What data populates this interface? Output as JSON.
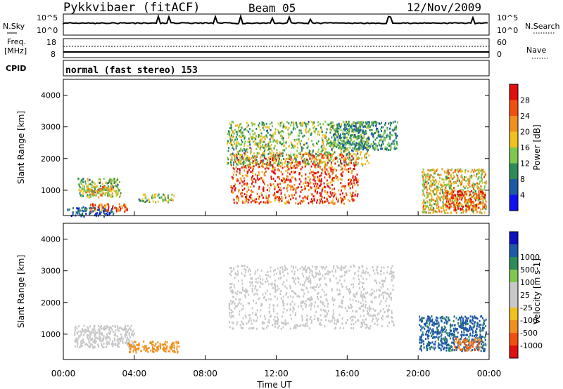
{
  "header": {
    "title": "Pykkvibaer (fitACF)",
    "beam": "Beam 05",
    "date": "12/Nov/2009"
  },
  "strip": {
    "nsky_label": "N.Sky",
    "nsearch_label": "N.Search",
    "freq_label_top": "Freq.",
    "freq_label_unit": "[MHz]",
    "nave_label": "Nave",
    "cpid_label": "CPID",
    "cpid_value": "normal (fast stereo) 153",
    "noise_ticks_left": [
      "10^5",
      "10^0"
    ],
    "noise_ticks_right": [
      "10^5",
      "10^0"
    ],
    "freq_ticks": [
      "18",
      "8"
    ],
    "nave_ticks": [
      "60",
      "0"
    ]
  },
  "colors": {
    "power": [
      "#1010f0",
      "#1e5aa8",
      "#2e8b57",
      "#7ec850",
      "#f0c020",
      "#f09020",
      "#f05010",
      "#e01010"
    ],
    "velocity": [
      "#e01010",
      "#f05010",
      "#f09020",
      "#f0c020",
      "#c8c8c8",
      "#c8c8c8",
      "#7ec850",
      "#2e8b57",
      "#1e5aa8",
      "#1010c0"
    ]
  },
  "chart_data": [
    {
      "type": "heatmap",
      "name": "power",
      "ylabel": "Slant Range [km]",
      "yticks": [
        "1000",
        "2000",
        "3000",
        "4000"
      ],
      "ylim": [
        200,
        4500
      ],
      "xlim": [
        0,
        24
      ],
      "colorbar_label": "Power [dB]",
      "colorbar_ticks": [
        "4",
        "8",
        "12",
        "16",
        "20",
        "24",
        "28"
      ],
      "colorbar_range": [
        0,
        32
      ],
      "regions": [
        {
          "t0": 0.2,
          "t1": 2.8,
          "r0": 200,
          "r1": 500,
          "value": 6
        },
        {
          "t0": 1.5,
          "t1": 3.6,
          "r0": 350,
          "r1": 600,
          "value": 26
        },
        {
          "t0": 0.8,
          "t1": 3.2,
          "r0": 800,
          "r1": 1400,
          "value": 14
        },
        {
          "t0": 1.2,
          "t1": 2.8,
          "r0": 850,
          "r1": 1150,
          "value": 20
        },
        {
          "t0": 4.2,
          "t1": 6.2,
          "r0": 650,
          "r1": 900,
          "value": 14
        },
        {
          "t0": 9.4,
          "t1": 16.6,
          "r0": 600,
          "r1": 2200,
          "value": 27
        },
        {
          "t0": 9.2,
          "t1": 17.2,
          "r0": 1800,
          "r1": 3200,
          "value": 14
        },
        {
          "t0": 15.0,
          "t1": 18.8,
          "r0": 2300,
          "r1": 3200,
          "value": 10
        },
        {
          "t0": 20.2,
          "t1": 23.8,
          "r0": 300,
          "r1": 1700,
          "value": 18
        },
        {
          "t0": 21.5,
          "t1": 23.8,
          "r0": 400,
          "r1": 1000,
          "value": 26
        }
      ]
    },
    {
      "type": "heatmap",
      "name": "velocity",
      "ylabel": "Slant Range [km]",
      "yticks": [
        "1000",
        "2000",
        "3000",
        "4000"
      ],
      "ylim": [
        200,
        4500
      ],
      "xlim": [
        0,
        24
      ],
      "xlabel": "Time UT",
      "xticks": [
        "00:00",
        "04:00",
        "08:00",
        "12:00",
        "16:00",
        "20:00",
        "00:00"
      ],
      "colorbar_label": "Velocity [m s-1]",
      "colorbar_ticks": [
        "-1000",
        "-500",
        "-100",
        "-25",
        "25",
        "100",
        "500",
        "1000"
      ],
      "regions": [
        {
          "t0": 0.6,
          "t1": 4.0,
          "r0": 600,
          "r1": 1300,
          "value": 0
        },
        {
          "t0": 3.6,
          "t1": 6.5,
          "r0": 450,
          "r1": 800,
          "value": -200
        },
        {
          "t0": 9.3,
          "t1": 18.6,
          "r0": 1200,
          "r1": 3200,
          "value": 0
        },
        {
          "t0": 20.0,
          "t1": 23.8,
          "r0": 500,
          "r1": 1600,
          "value": 600
        },
        {
          "t0": 22.0,
          "t1": 23.5,
          "r0": 500,
          "r1": 900,
          "value": -500
        }
      ]
    }
  ]
}
